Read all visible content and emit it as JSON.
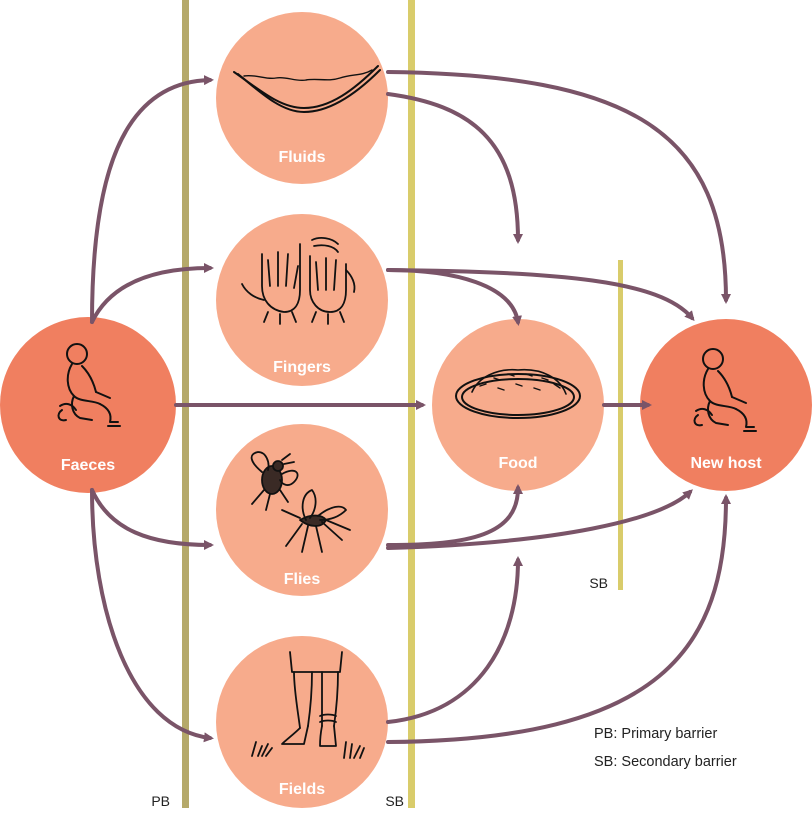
{
  "colors": {
    "source_circle": "#F07F60",
    "route_circle": "#F7AB8C",
    "arrow": "#7A5468",
    "primary_barrier": "#B5A96A",
    "secondary_barrier": "#D9CC6B"
  },
  "nodes": {
    "faeces": {
      "label": "Faeces",
      "icon": "squatting-person-icon"
    },
    "fluids": {
      "label": "Fluids",
      "icon": "water-dish-icon"
    },
    "fingers": {
      "label": "Fingers",
      "icon": "hands-icon"
    },
    "flies": {
      "label": "Flies",
      "icon": "flies-icon"
    },
    "fields": {
      "label": "Fields",
      "icon": "legs-grass-icon"
    },
    "food": {
      "label": "Food",
      "icon": "food-plate-icon"
    },
    "new_host": {
      "label": "New host",
      "icon": "squatting-person-icon"
    }
  },
  "barriers": {
    "primary": "PB",
    "secondary_main": "SB",
    "secondary_right": "SB"
  },
  "legend": {
    "pb": "PB: Primary barrier",
    "sb": "SB: Secondary barrier"
  }
}
